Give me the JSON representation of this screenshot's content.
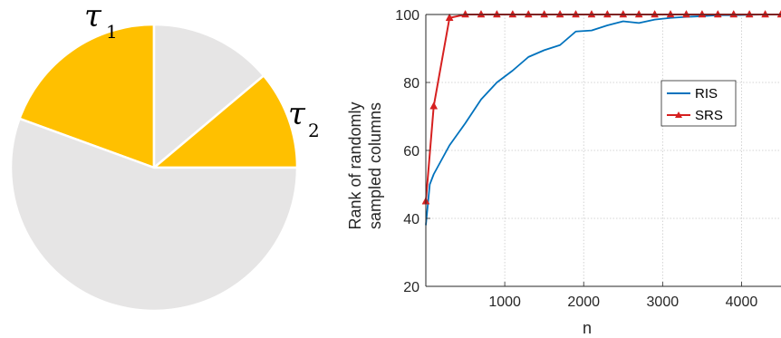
{
  "chart_data": [
    {
      "type": "pie",
      "slices": [
        {
          "label": "τ1",
          "start_deg": 90,
          "end_deg": 160,
          "highlighted": true
        },
        {
          "label": "",
          "start_deg": 40,
          "end_deg": 90,
          "highlighted": false
        },
        {
          "label": "τ2",
          "start_deg": 0,
          "end_deg": 40,
          "highlighted": true
        },
        {
          "label": "",
          "start_deg": 160,
          "end_deg": 360,
          "highlighted": false
        }
      ],
      "labels": [
        {
          "symbol": "τ",
          "subscript": "1"
        },
        {
          "symbol": "τ",
          "subscript": "2"
        }
      ],
      "colors": {
        "highlight": "#FFC000",
        "base": "#E6E5E5",
        "edge": "#FFFFFF"
      }
    },
    {
      "type": "line",
      "xlabel": "n",
      "ylabel_lines": [
        "Rank of randomly",
        "sampled columns"
      ],
      "xlim": [
        0,
        4500
      ],
      "ylim": [
        20,
        100
      ],
      "xticks": [
        1000,
        2000,
        3000,
        4000
      ],
      "yticks": [
        20,
        40,
        60,
        80,
        100
      ],
      "grid": true,
      "legend_position": "middle-right",
      "series": [
        {
          "name": "RIS",
          "color": "#0072BD",
          "marker": "none",
          "x": [
            0,
            50,
            100,
            300,
            500,
            700,
            900,
            1100,
            1300,
            1500,
            1700,
            1900,
            2100,
            2300,
            2500,
            2700,
            2900,
            3100,
            3300,
            3500,
            3700,
            3900,
            4100,
            4300,
            4500
          ],
          "y": [
            38,
            50,
            53,
            61.5,
            68,
            75,
            80,
            83.5,
            87.5,
            89.5,
            91,
            95,
            95.3,
            96.8,
            98,
            97.5,
            98.5,
            99,
            99.3,
            99.5,
            99.8,
            99.8,
            99.9,
            100,
            100
          ]
        },
        {
          "name": "SRS",
          "color": "#D62020",
          "marker": "triangle",
          "x": [
            0,
            100,
            300,
            500,
            700,
            900,
            1100,
            1300,
            1500,
            1700,
            1900,
            2100,
            2300,
            2500,
            2700,
            2900,
            3100,
            3300,
            3500,
            3700,
            3900,
            4100,
            4300,
            4500
          ],
          "y": [
            45,
            73,
            99,
            100,
            100,
            100,
            100,
            100,
            100,
            100,
            100,
            100,
            100,
            100,
            100,
            100,
            100,
            100,
            100,
            100,
            100,
            100,
            100,
            100
          ]
        }
      ]
    }
  ]
}
